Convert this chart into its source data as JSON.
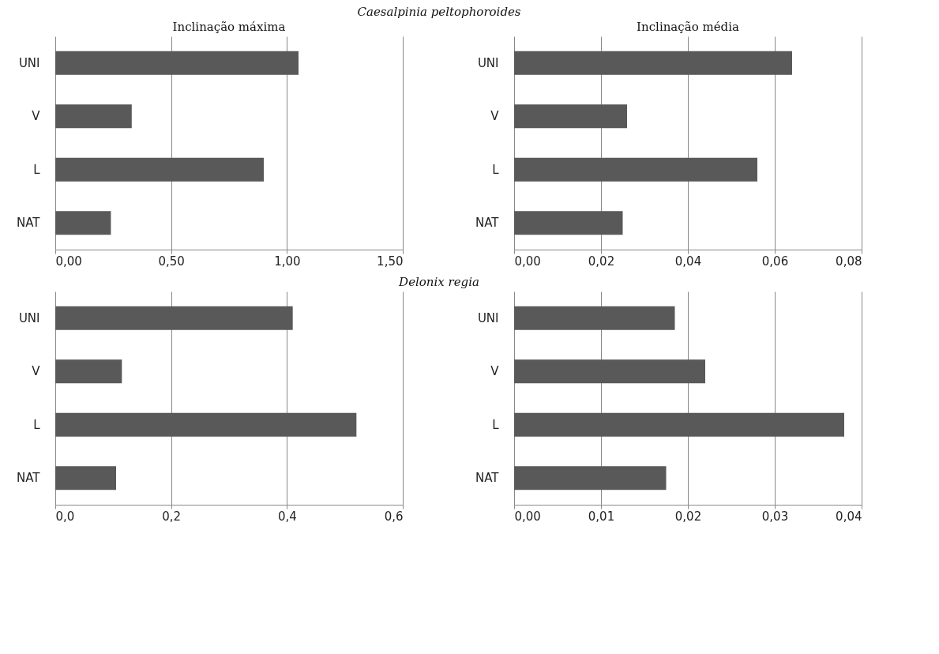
{
  "chart_data": [
    {
      "type": "bar",
      "orientation": "horizontal",
      "title": "Caesalpinia peltophoroides",
      "subtitle": "Inclinação máxima",
      "categories": [
        "UNI",
        "V",
        "L",
        "NAT"
      ],
      "values": [
        1.05,
        0.33,
        0.9,
        0.24
      ],
      "color": "#595959",
      "xlim": [
        0,
        1.5
      ],
      "xticks": [
        {
          "value": 0,
          "label": "0,00"
        },
        {
          "value": 0.5,
          "label": "0,50"
        },
        {
          "value": 1,
          "label": "1,00"
        },
        {
          "value": 1.5,
          "label": "1,50"
        }
      ],
      "grid": "x"
    },
    {
      "type": "bar",
      "orientation": "horizontal",
      "subtitle": "Inclinação média",
      "categories": [
        "UNI",
        "V",
        "L",
        "NAT"
      ],
      "values": [
        0.064,
        0.026,
        0.056,
        0.025
      ],
      "color": "#595959",
      "xlim": [
        0,
        0.08
      ],
      "xticks": [
        {
          "value": 0,
          "label": "0,00"
        },
        {
          "value": 0.02,
          "label": "0,02"
        },
        {
          "value": 0.04,
          "label": "0,04"
        },
        {
          "value": 0.06,
          "label": "0,06"
        },
        {
          "value": 0.08,
          "label": "0,08"
        }
      ],
      "grid": "x"
    },
    {
      "type": "bar",
      "orientation": "horizontal",
      "title": "Delonix regia",
      "categories": [
        "UNI",
        "V",
        "L",
        "NAT"
      ],
      "values": [
        0.41,
        0.115,
        0.52,
        0.105
      ],
      "color": "#595959",
      "xlim": [
        0,
        0.6
      ],
      "xticks": [
        {
          "value": 0,
          "label": "0,0"
        },
        {
          "value": 0.2,
          "label": "0,2"
        },
        {
          "value": 0.4,
          "label": "0,4"
        },
        {
          "value": 0.6,
          "label": "0,6"
        }
      ],
      "grid": "x"
    },
    {
      "type": "bar",
      "orientation": "horizontal",
      "categories": [
        "UNI",
        "V",
        "L",
        "NAT"
      ],
      "values": [
        0.0185,
        0.022,
        0.038,
        0.0175
      ],
      "color": "#595959",
      "xlim": [
        0,
        0.04
      ],
      "xticks": [
        {
          "value": 0,
          "label": "0,00"
        },
        {
          "value": 0.01,
          "label": "0,01"
        },
        {
          "value": 0.02,
          "label": "0,02"
        },
        {
          "value": 0.03,
          "label": "0,03"
        },
        {
          "value": 0.04,
          "label": "0,04"
        }
      ],
      "grid": "x"
    }
  ]
}
